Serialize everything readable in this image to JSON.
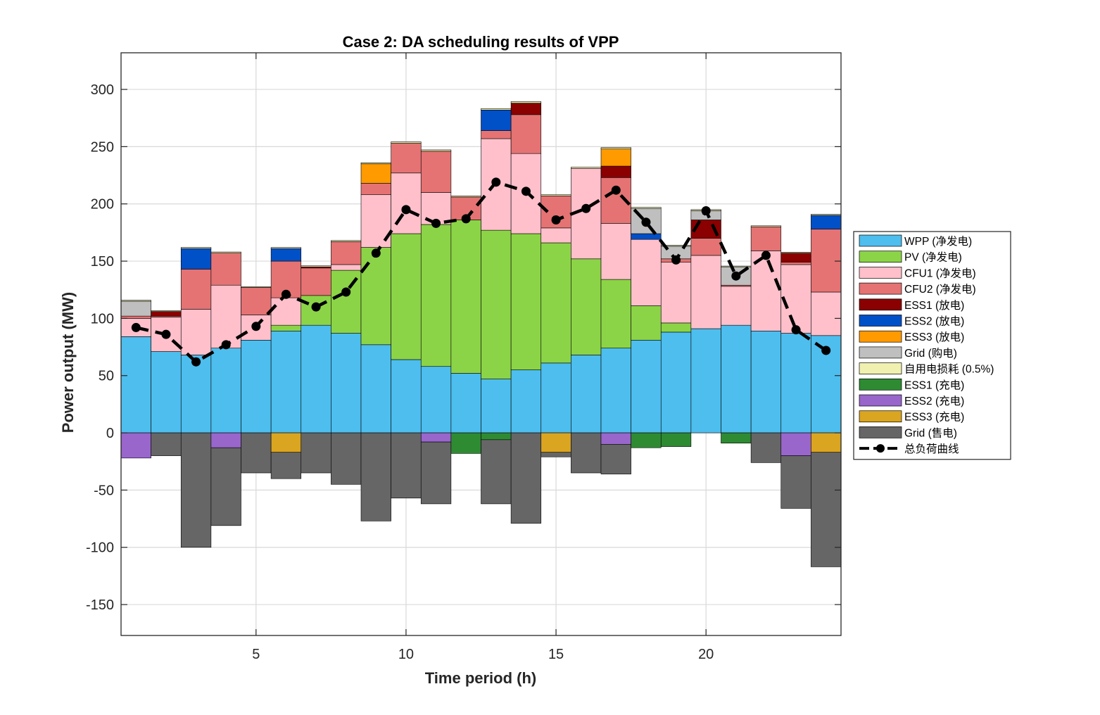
{
  "chart_data": {
    "type": "bar",
    "stacked": true,
    "title": "Case 2: DA scheduling results of VPP",
    "xlabel": "Time period (h)",
    "ylabel": "Power output (MW)",
    "xlim": [
      0.5,
      24.5
    ],
    "ylim": [
      -177,
      332
    ],
    "xticks": [
      5,
      10,
      15,
      20
    ],
    "yticks": [
      -150,
      -100,
      -50,
      0,
      50,
      100,
      150,
      200,
      250,
      300
    ],
    "grid": true,
    "legend_position": "outside-right",
    "x": [
      1,
      2,
      3,
      4,
      5,
      6,
      7,
      8,
      9,
      10,
      11,
      12,
      13,
      14,
      15,
      16,
      17,
      18,
      19,
      20,
      21,
      22,
      23,
      24
    ],
    "positive_series": [
      {
        "name": "WPP (净发电)",
        "color": "#4DBEEE",
        "values": [
          84,
          71,
          68,
          74,
          81,
          89,
          94,
          87,
          77,
          64,
          58,
          52,
          47,
          55,
          61,
          68,
          74,
          81,
          88,
          91,
          94,
          89,
          87,
          85
        ]
      },
      {
        "name": "PV (净发电)",
        "color": "#8CD447",
        "values": [
          0,
          0,
          0,
          0,
          0,
          5,
          26,
          55,
          85,
          110,
          124,
          134,
          130,
          119,
          105,
          84,
          60,
          30,
          8,
          0,
          0,
          0,
          0,
          0
        ]
      },
      {
        "name": "CFU1 (净发电)",
        "color": "#FFC0CB",
        "values": [
          16,
          30,
          40,
          55,
          22,
          24,
          0,
          5,
          46,
          53,
          28,
          0,
          80,
          70,
          13,
          79,
          49,
          58,
          53,
          64,
          34,
          70,
          60,
          38
        ]
      },
      {
        "name": "CFU2 (净发电)",
        "color": "#E57373",
        "values": [
          2,
          1,
          35,
          28,
          24,
          32,
          24,
          20,
          10,
          26,
          36,
          20,
          7,
          34,
          28,
          0,
          40,
          0,
          3,
          15,
          1,
          21,
          2,
          55
        ]
      },
      {
        "name": "ESS1 (放电)",
        "color": "#8B0000",
        "values": [
          0,
          4,
          0,
          0,
          0,
          0,
          1,
          0,
          0,
          0,
          0,
          0,
          0,
          10,
          0,
          0,
          10,
          0,
          0,
          16,
          0,
          0,
          8,
          0
        ]
      },
      {
        "name": "ESS2 (放电)",
        "color": "#0050C8",
        "values": [
          0,
          0,
          18,
          0,
          0,
          11,
          0,
          0,
          0,
          0,
          0,
          0,
          18,
          0,
          0,
          0,
          0,
          5,
          0,
          0,
          0,
          0,
          0,
          12
        ]
      },
      {
        "name": "ESS3 (放电)",
        "color": "#FF9A00",
        "values": [
          0,
          0,
          0,
          0,
          0,
          0,
          0,
          0,
          17,
          0,
          0,
          0,
          0,
          0,
          0,
          0,
          15,
          0,
          0,
          0,
          0,
          0,
          0,
          0
        ]
      },
      {
        "name": "Grid (购电)",
        "color": "#BFBFBF",
        "values": [
          13,
          0,
          0,
          0,
          0,
          0,
          0,
          0,
          0,
          0,
          0,
          0,
          0,
          0,
          0,
          0,
          0,
          22,
          11,
          8,
          16,
          0,
          0,
          0
        ]
      },
      {
        "name": "自用电损耗 (0.5%)",
        "color": "#F0F0B0",
        "values": [
          0.8,
          0.7,
          1,
          1,
          0.7,
          0.9,
          0.9,
          1,
          1,
          1.2,
          1.2,
          1,
          1.3,
          1.4,
          1,
          1.1,
          1.2,
          1,
          0.8,
          1,
          0.7,
          0.9,
          0.8,
          0.9
        ]
      }
    ],
    "negative_series": [
      {
        "name": "ESS1 (充电)",
        "color": "#2E8B32",
        "values": [
          0,
          0,
          0,
          0,
          0,
          0,
          0,
          0,
          0,
          0,
          0,
          -18,
          -6,
          0,
          0,
          0,
          0,
          -13,
          -12,
          0,
          -9,
          0,
          0,
          0
        ]
      },
      {
        "name": "ESS2 (充电)",
        "color": "#9966CC",
        "values": [
          -22,
          0,
          0,
          -13,
          0,
          0,
          0,
          0,
          0,
          0,
          -8,
          0,
          0,
          0,
          0,
          0,
          -10,
          0,
          0,
          0,
          0,
          0,
          -20,
          0
        ]
      },
      {
        "name": "ESS3 (充电)",
        "color": "#DAA520",
        "values": [
          0,
          0,
          0,
          0,
          0,
          -17,
          0,
          0,
          0,
          0,
          0,
          0,
          0,
          0,
          -17,
          0,
          0,
          0,
          0,
          0,
          0,
          0,
          0,
          -17
        ]
      },
      {
        "name": "Grid (售电)",
        "color": "#666666",
        "values": [
          0,
          -20,
          -100,
          -68,
          -35,
          -23,
          -35,
          -45,
          -77,
          -57,
          -54,
          0,
          -56,
          -79,
          -4,
          -35,
          -26,
          0,
          0,
          0,
          0,
          -26,
          -46,
          -100
        ]
      }
    ],
    "load_curve": {
      "name": "总负荷曲线",
      "color": "#000000",
      "values": [
        92,
        86,
        62,
        77,
        93,
        121,
        110,
        123,
        157,
        195,
        183,
        187,
        219,
        211,
        186,
        196,
        212,
        184,
        151,
        194,
        137,
        155,
        90,
        72
      ]
    }
  }
}
